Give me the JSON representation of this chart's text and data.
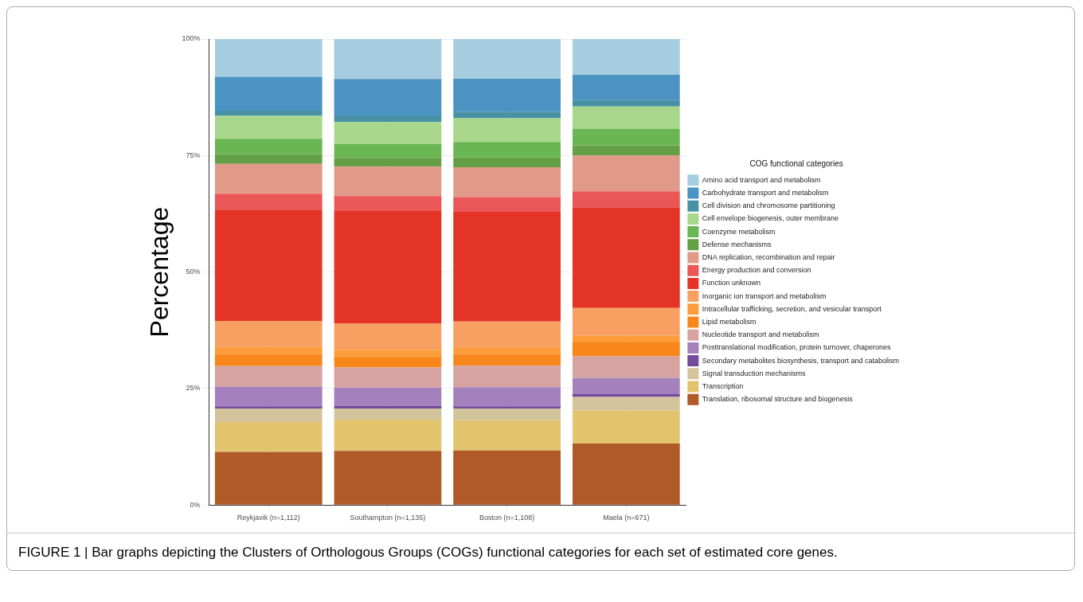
{
  "chart_data": {
    "type": "bar",
    "stacked": true,
    "ylabel": "Percentage",
    "legend_title": "COG functional categories",
    "legend": "right",
    "grid": true,
    "categories": [
      "Reykjavik (n=1,112)",
      "Southampton (n=1,135)",
      "Boston (n=1,108)",
      "Maela (n=671)"
    ],
    "ylim": [
      0,
      100
    ],
    "yticks": [
      {
        "value": 0,
        "label": "0%"
      },
      {
        "value": 25,
        "label": "25%"
      },
      {
        "value": 50,
        "label": "50%"
      },
      {
        "value": 75,
        "label": "75%"
      },
      {
        "value": 100,
        "label": "100%"
      }
    ],
    "series": [
      {
        "name": "Translation, ribosomal structure and biogenesis",
        "color": "#b05a28",
        "values": [
          11.4,
          11.6,
          11.7,
          13.2
        ]
      },
      {
        "name": "Transcription",
        "color": "#e2c36e",
        "values": [
          6.4,
          6.7,
          6.5,
          7.1
        ]
      },
      {
        "name": "Signal transduction mechanisms",
        "color": "#d3c49b",
        "values": [
          2.9,
          2.4,
          2.5,
          2.9
        ]
      },
      {
        "name": "Secondary metabolites biosynthesis, transport and catabolism",
        "color": "#744a9b",
        "values": [
          0.5,
          0.6,
          0.5,
          0.6
        ]
      },
      {
        "name": "Posttranslational modification, protein turnover, chaperones",
        "color": "#a481bc",
        "values": [
          4.2,
          3.9,
          4.1,
          3.5
        ]
      },
      {
        "name": "Nucleotide transport and metabolism",
        "color": "#d6a3a0",
        "values": [
          4.4,
          4.3,
          4.6,
          4.6
        ]
      },
      {
        "name": "Lipid metabolism",
        "color": "#f7861b",
        "values": [
          2.6,
          2.4,
          2.5,
          3.0
        ]
      },
      {
        "name": "Intracellular trafficking, secretion, and vesicular transport",
        "color": "#fd9c3a",
        "values": [
          1.5,
          1.4,
          1.3,
          1.4
        ]
      },
      {
        "name": "Inorganic ion transport and metabolism",
        "color": "#f8a062",
        "values": [
          5.6,
          5.6,
          5.7,
          6.0
        ]
      },
      {
        "name": "Function unknown",
        "color": "#e43428",
        "values": [
          23.9,
          24.2,
          23.5,
          21.6
        ]
      },
      {
        "name": "Energy production and conversion",
        "color": "#eb5656",
        "values": [
          3.4,
          3.2,
          3.2,
          3.4
        ]
      },
      {
        "name": "DNA replication, recombination and repair",
        "color": "#e19989",
        "values": [
          6.4,
          6.3,
          6.4,
          7.7
        ]
      },
      {
        "name": "Defense mechanisms",
        "color": "#649f45",
        "values": [
          2.1,
          1.9,
          2.1,
          2.2
        ]
      },
      {
        "name": "Coenzyme metabolism",
        "color": "#69b653",
        "values": [
          3.3,
          3.0,
          3.3,
          3.5
        ]
      },
      {
        "name": "Cell envelope biogenesis, outer membrane",
        "color": "#a8d78c",
        "values": [
          4.9,
          4.7,
          5.1,
          4.8
        ]
      },
      {
        "name": "Cell division and chromosome partitioning",
        "color": "#4891a5",
        "values": [
          1.1,
          1.4,
          1.4,
          1.4
        ]
      },
      {
        "name": "Carbohydrate transport and metabolism",
        "color": "#4b93c2",
        "values": [
          7.3,
          7.8,
          7.1,
          5.4
        ]
      },
      {
        "name": "Amino acid transport and metabolism",
        "color": "#a6cce0",
        "values": [
          8.1,
          8.6,
          8.5,
          7.7
        ]
      }
    ],
    "annotations": [
      "FIGURE 1 | Bar graphs depicting the Clusters of Orthologous Groups (COGs) functional categories for each set of estimated core genes."
    ]
  }
}
